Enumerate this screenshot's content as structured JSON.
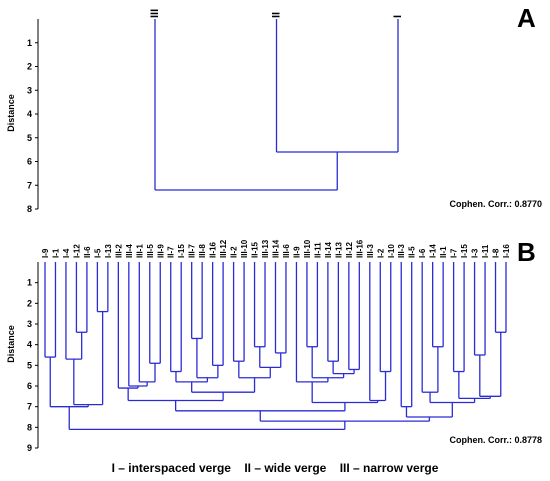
{
  "legend_text": "I – interspaced verge    II – wide verge    III – narrow verge",
  "colors": {
    "link": "#2b2bd6",
    "text": "#000000"
  },
  "chart_data": [
    {
      "panel": "A",
      "type": "dendrogram",
      "ylabel": "Distance",
      "ylim": [
        0,
        8
      ],
      "yticks": [
        1,
        2,
        3,
        4,
        5,
        6,
        7,
        8
      ],
      "cophenetic": "Cophen. Corr.: 0.8770",
      "leaves": [
        "III",
        "II",
        "I"
      ],
      "tree": {
        "height": 7.2,
        "children": [
          "III",
          {
            "height": 5.6,
            "children": [
              "II",
              "I"
            ]
          }
        ]
      }
    },
    {
      "panel": "B",
      "type": "dendrogram",
      "ylabel": "Distance",
      "ylim": [
        0,
        9
      ],
      "yticks": [
        1,
        2,
        3,
        4,
        5,
        6,
        7,
        8,
        9
      ],
      "cophenetic": "Cophen. Corr.: 0.8778",
      "leaves": [
        "I-9",
        "I-1",
        "I-4",
        "I-12",
        "II-6",
        "I-5",
        "I-13",
        "III-2",
        "III-4",
        "III-1",
        "III-5",
        "III-9",
        "II-7",
        "I-15",
        "III-7",
        "III-8",
        "II-16",
        "III-12",
        "II-2",
        "III-10",
        "II-15",
        "III-13",
        "III-14",
        "III-6",
        "II-9",
        "III-10",
        "II-11",
        "II-14",
        "II-13",
        "II-12",
        "III-16",
        "III-3",
        "I-2",
        "I-10",
        "III-3",
        "II-5",
        "I-6",
        "I-14",
        "II-1",
        "I-7",
        "I-15",
        "I-3",
        "I-11",
        "I-8",
        "I-16"
      ],
      "tree": {
        "height": 8.1,
        "children": [
          {
            "height": 7.0,
            "children": [
              {
                "height": 4.6,
                "children": [
                  "I-9",
                  "I-1"
                ]
              },
              {
                "height": 6.9,
                "children": [
                  {
                    "height": 4.7,
                    "children": [
                      "I-4",
                      {
                        "height": 3.4,
                        "children": [
                          "I-12",
                          "II-6"
                        ]
                      }
                    ]
                  },
                  {
                    "height": 2.4,
                    "children": [
                      "I-5",
                      "I-13"
                    ]
                  }
                ]
              }
            ]
          },
          {
            "height": 7.7,
            "children": [
              {
                "height": 7.2,
                "children": [
                  {
                    "height": 6.7,
                    "children": [
                      {
                        "height": 6.1,
                        "children": [
                          "III-2",
                          {
                            "height": 6.0,
                            "children": [
                              "III-4",
                              {
                                "height": 5.8,
                                "children": [
                                  "III-1",
                                  {
                                    "height": 4.9,
                                    "children": [
                                      "III-5",
                                      "III-9"
                                    ]
                                  }
                                ]
                              }
                            ]
                          }
                        ]
                      },
                      {
                        "height": 6.3,
                        "children": [
                          {
                            "height": 5.8,
                            "children": [
                              {
                                "height": 5.3,
                                "children": [
                                  "II-7",
                                  "I-15"
                                ]
                              },
                              {
                                "height": 5.6,
                                "children": [
                                  {
                                    "height": 3.7,
                                    "children": [
                                      "III-7",
                                      "III-8"
                                    ]
                                  },
                                  {
                                    "height": 5.0,
                                    "children": [
                                      "II-16",
                                      "III-12"
                                    ]
                                  }
                                ]
                              }
                            ]
                          },
                          {
                            "height": 5.6,
                            "children": [
                              {
                                "height": 4.8,
                                "children": [
                                  "II-2",
                                  "III-10"
                                ]
                              },
                              {
                                "height": 5.1,
                                "children": [
                                  {
                                    "height": 4.1,
                                    "children": [
                                      "II-15",
                                      "III-13"
                                    ]
                                  },
                                  {
                                    "height": 4.4,
                                    "children": [
                                      "III-14",
                                      "III-6"
                                    ]
                                  }
                                ]
                              }
                            ]
                          }
                        ]
                      }
                    ]
                  },
                  {
                    "height": 6.8,
                    "children": [
                      {
                        "height": 5.8,
                        "children": [
                          "II-9",
                          {
                            "height": 5.6,
                            "children": [
                              {
                                "height": 4.1,
                                "children": [
                                  "III-10",
                                  "II-11"
                                ]
                              },
                              {
                                "height": 5.4,
                                "children": [
                                  {
                                    "height": 4.8,
                                    "children": [
                                      "II-14",
                                      "II-13"
                                    ]
                                  },
                                  {
                                    "height": 5.2,
                                    "children": [
                                      "II-12",
                                      "III-16"
                                    ]
                                  }
                                ]
                              }
                            ]
                          }
                        ]
                      },
                      {
                        "height": 6.7,
                        "children": [
                          "III-3",
                          {
                            "height": 5.3,
                            "children": [
                              "I-2",
                              "I-10"
                            ]
                          }
                        ]
                      }
                    ]
                  }
                ]
              },
              {
                "height": 7.5,
                "children": [
                  {
                    "height": 7.0,
                    "children": [
                      "III-3",
                      "II-5"
                    ]
                  },
                  {
                    "height": 6.8,
                    "children": [
                      {
                        "height": 6.3,
                        "children": [
                          "I-6",
                          {
                            "height": 4.1,
                            "children": [
                              "I-14",
                              "II-1"
                            ]
                          }
                        ]
                      },
                      {
                        "height": 6.6,
                        "children": [
                          {
                            "height": 5.3,
                            "children": [
                              "I-7",
                              "I-15"
                            ]
                          },
                          {
                            "height": 6.5,
                            "children": [
                              {
                                "height": 4.5,
                                "children": [
                                  "I-3",
                                  "I-11"
                                ]
                              },
                              {
                                "height": 3.4,
                                "children": [
                                  "I-8",
                                  "I-16"
                                ]
                              }
                            ]
                          }
                        ]
                      }
                    ]
                  }
                ]
              }
            ]
          }
        ]
      }
    }
  ]
}
